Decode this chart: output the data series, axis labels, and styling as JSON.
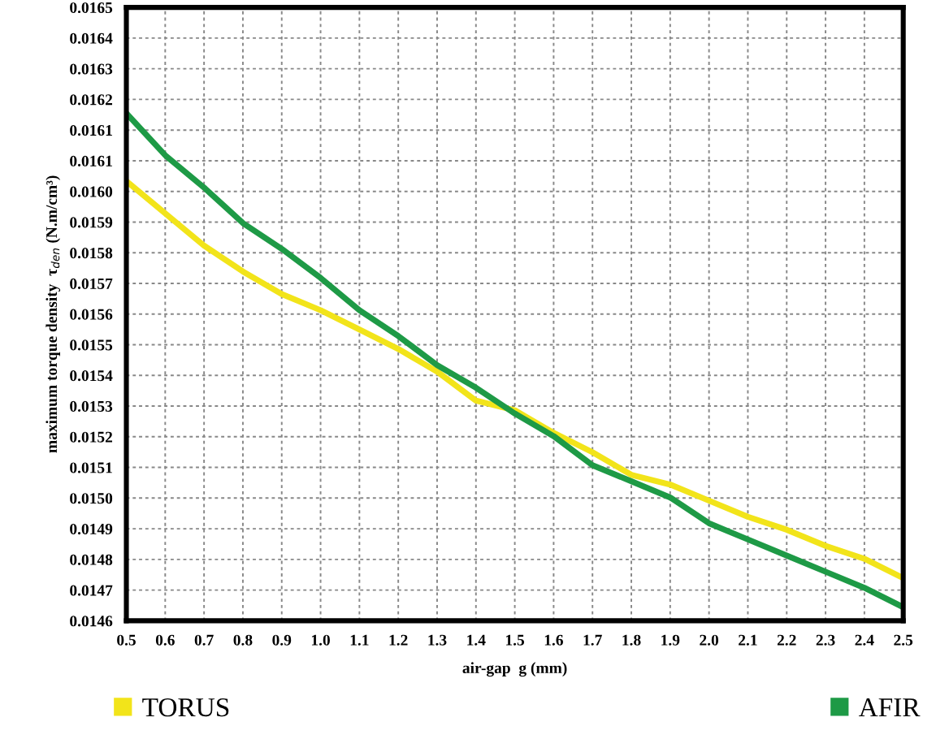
{
  "chart_data": {
    "type": "line",
    "xlabel": "air-gap  g (mm)",
    "ylabel": "maximum torque density  τ$_{den}$ (N.m/cm³)",
    "x": [
      0.5,
      0.6,
      0.7,
      0.8,
      0.9,
      1.0,
      1.1,
      1.2,
      1.3,
      1.4,
      1.5,
      1.6,
      1.7,
      1.8,
      1.9,
      2.0,
      2.1,
      2.2,
      2.3,
      2.4,
      2.5
    ],
    "series": [
      {
        "name": "TORUS",
        "color": "#f2e41a",
        "values": [
          0.01599,
          0.01589,
          0.01579,
          0.01571,
          0.01564,
          0.01559,
          0.01553,
          0.01547,
          0.0154,
          0.01531,
          0.01528,
          0.01521,
          0.01515,
          0.01508,
          0.01505,
          0.015,
          0.01495,
          0.01491,
          0.01486,
          0.01482,
          0.01476
        ]
      },
      {
        "name": "AFIR",
        "color": "#1e9a46",
        "values": [
          0.0162,
          0.01607,
          0.01597,
          0.01586,
          0.01578,
          0.01569,
          0.01559,
          0.01551,
          0.01542,
          0.01535,
          0.01527,
          0.0152,
          0.01511,
          0.01506,
          0.01501,
          0.01493,
          0.01488,
          0.01483,
          0.01478,
          0.01473,
          0.01467
        ]
      }
    ],
    "xlim": [
      0.5,
      2.5
    ],
    "xticks": [
      {
        "value": 0.5,
        "label": "0.5"
      },
      {
        "value": 0.6,
        "label": "0.6"
      },
      {
        "value": 0.7,
        "label": "0.7"
      },
      {
        "value": 0.8,
        "label": "0.8"
      },
      {
        "value": 0.9,
        "label": "0.9"
      },
      {
        "value": 1.0,
        "label": "1.0"
      },
      {
        "value": 1.1,
        "label": "1.1"
      },
      {
        "value": 1.2,
        "label": "1.2"
      },
      {
        "value": 1.3,
        "label": "1.3"
      },
      {
        "value": 1.4,
        "label": "1.4"
      },
      {
        "value": 1.5,
        "label": "1.5"
      },
      {
        "value": 1.6,
        "label": "1.6"
      },
      {
        "value": 1.7,
        "label": "1.7"
      },
      {
        "value": 1.8,
        "label": "1.8"
      },
      {
        "value": 1.9,
        "label": "1.9"
      },
      {
        "value": 2.0,
        "label": "2.0"
      },
      {
        "value": 2.1,
        "label": "2.1"
      },
      {
        "value": 2.2,
        "label": "2.2"
      },
      {
        "value": 2.3,
        "label": "2.3"
      },
      {
        "value": 2.4,
        "label": "2.4"
      },
      {
        "value": 2.5,
        "label": "2.5"
      }
    ],
    "ylim": [
      0.014628,
      0.016528
    ],
    "yticks": [
      {
        "value": 0.014628,
        "label": "0.0146"
      },
      {
        "value": 0.014723,
        "label": "0.0147"
      },
      {
        "value": 0.014818,
        "label": "0.0148"
      },
      {
        "value": 0.014913,
        "label": "0.0149"
      },
      {
        "value": 0.015008,
        "label": "0.0150"
      },
      {
        "value": 0.015103,
        "label": "0.0151"
      },
      {
        "value": 0.015198,
        "label": "0.0152"
      },
      {
        "value": 0.015293,
        "label": "0.0153"
      },
      {
        "value": 0.015388,
        "label": "0.0154"
      },
      {
        "value": 0.015483,
        "label": "0.0155"
      },
      {
        "value": 0.015578,
        "label": "0.0156"
      },
      {
        "value": 0.015673,
        "label": "0.0157"
      },
      {
        "value": 0.015768,
        "label": "0.0158"
      },
      {
        "value": 0.015863,
        "label": "0.0159"
      },
      {
        "value": 0.015958,
        "label": "0.0160"
      },
      {
        "value": 0.016053,
        "label": "0.0161"
      },
      {
        "value": 0.016148,
        "label": "0.0161"
      },
      {
        "value": 0.016243,
        "label": "0.0162"
      },
      {
        "value": 0.016338,
        "label": "0.0163"
      },
      {
        "value": 0.016433,
        "label": "0.0164"
      },
      {
        "value": 0.016528,
        "label": "0.0165"
      }
    ],
    "grid": true,
    "legend": "bottom",
    "line_style": "solid",
    "marker": "none"
  }
}
